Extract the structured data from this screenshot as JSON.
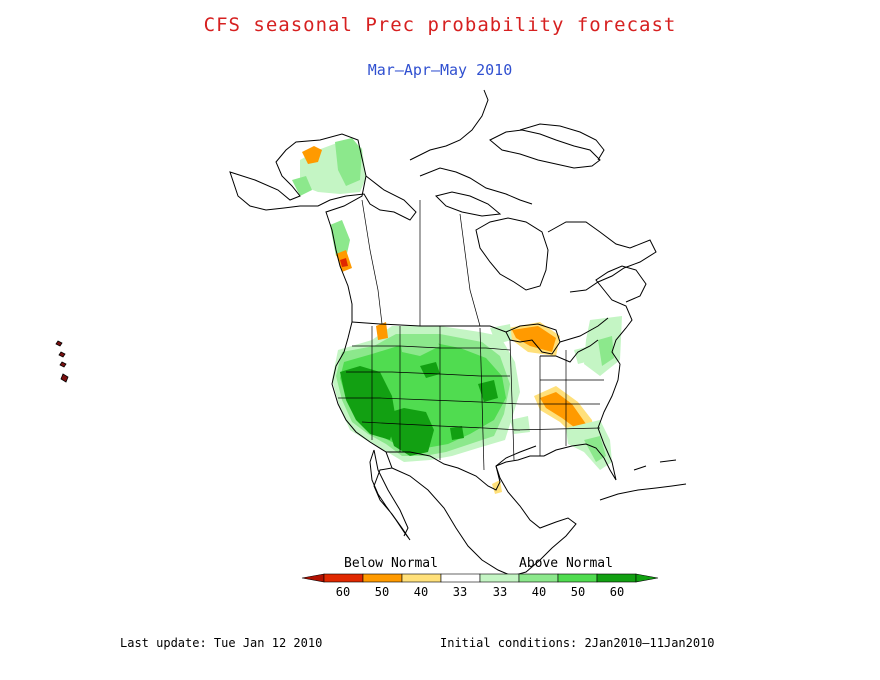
{
  "header": {
    "title": "CFS seasonal Prec probability forecast",
    "title_color": "#d62020",
    "subtitle": "Mar–Apr–May 2010",
    "subtitle_color": "#3050d0"
  },
  "legend": {
    "below_label": "Below Normal",
    "above_label": "Above Normal",
    "bins": [
      {
        "label": "60",
        "color": "#e02800"
      },
      {
        "label": "50",
        "color": "#ff9a00"
      },
      {
        "label": "40",
        "color": "#ffe07a"
      },
      {
        "label": "33",
        "color": "#ffffff"
      },
      {
        "label": "33",
        "color": "#c4f5c4"
      },
      {
        "label": "40",
        "color": "#8ce88c"
      },
      {
        "label": "50",
        "color": "#50dc50"
      },
      {
        "label": "60",
        "color": "#12a012"
      }
    ],
    "end_colors": {
      "left": "#b01000",
      "right": "#10a010"
    }
  },
  "footer": {
    "last_update": "Last update: Tue Jan 12 2010",
    "initial_conditions": "Initial conditions: 2Jan2010–11Jan2010"
  },
  "map": {
    "region": "North America",
    "outline_color": "#000000",
    "categories": {
      "above_60": "#12a012",
      "above_50": "#50dc50",
      "above_40": "#8ce88c",
      "above_33": "#c4f5c4",
      "below_40": "#ffe07a",
      "below_50": "#ff9a00",
      "below_60": "#e02800"
    }
  }
}
